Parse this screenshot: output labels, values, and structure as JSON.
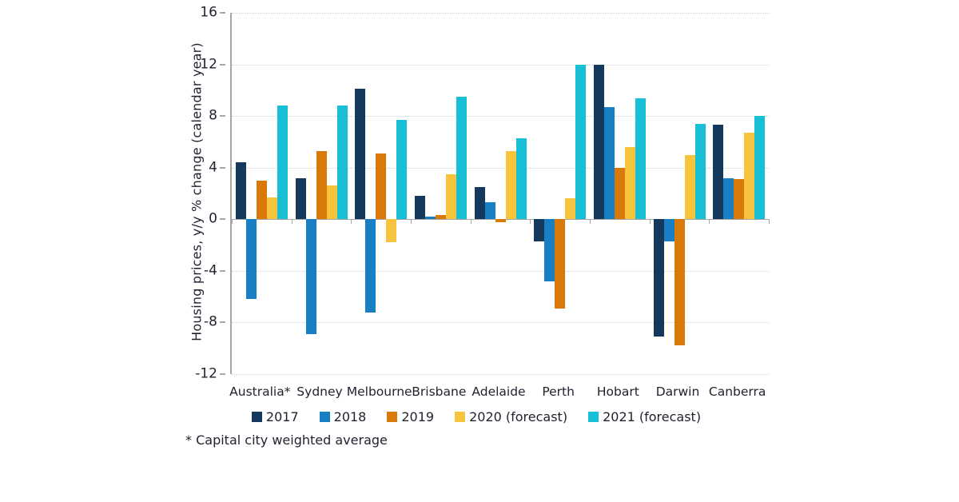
{
  "chart_data": {
    "type": "bar",
    "title": "",
    "ylabel": "Housing prices, y/y % change (calendar year)",
    "xlabel": "",
    "ylim": [
      -12,
      16
    ],
    "yticks": [
      16,
      12,
      8,
      4,
      0,
      -4,
      -8,
      -12
    ],
    "grid": "horizontal-dotted",
    "legend_position": "bottom",
    "categories": [
      "Australia*",
      "Sydney",
      "Melbourne",
      "Brisbane",
      "Adelaide",
      "Perth",
      "Hobart",
      "Darwin",
      "Canberra"
    ],
    "series": [
      {
        "name": "2017",
        "color": "#15395c",
        "values": [
          4.4,
          3.2,
          10.1,
          1.8,
          2.5,
          -1.7,
          12.0,
          -9.1,
          7.3
        ]
      },
      {
        "name": "2018",
        "color": "#187fc4",
        "values": [
          -6.2,
          -8.9,
          -7.2,
          0.2,
          1.3,
          -4.8,
          8.7,
          -1.7,
          3.2
        ]
      },
      {
        "name": "2019",
        "color": "#d97908",
        "values": [
          3.0,
          5.3,
          5.1,
          0.3,
          -0.2,
          -6.9,
          4.0,
          -9.8,
          3.1
        ]
      },
      {
        "name": "2020 (forecast)",
        "color": "#f7c43d",
        "values": [
          1.7,
          2.6,
          -1.8,
          3.5,
          5.3,
          1.6,
          5.6,
          5.0,
          6.7
        ]
      },
      {
        "name": "2021 (forecast)",
        "color": "#17bfd6",
        "values": [
          8.8,
          8.8,
          7.7,
          9.5,
          6.3,
          12.0,
          9.4,
          7.4,
          8.0
        ]
      }
    ],
    "footnote": "* Capital city weighted average"
  },
  "style_colors": {
    "axis": "#a6a6a6",
    "gridline": "#cfcfcf",
    "text": "#1e222e"
  }
}
